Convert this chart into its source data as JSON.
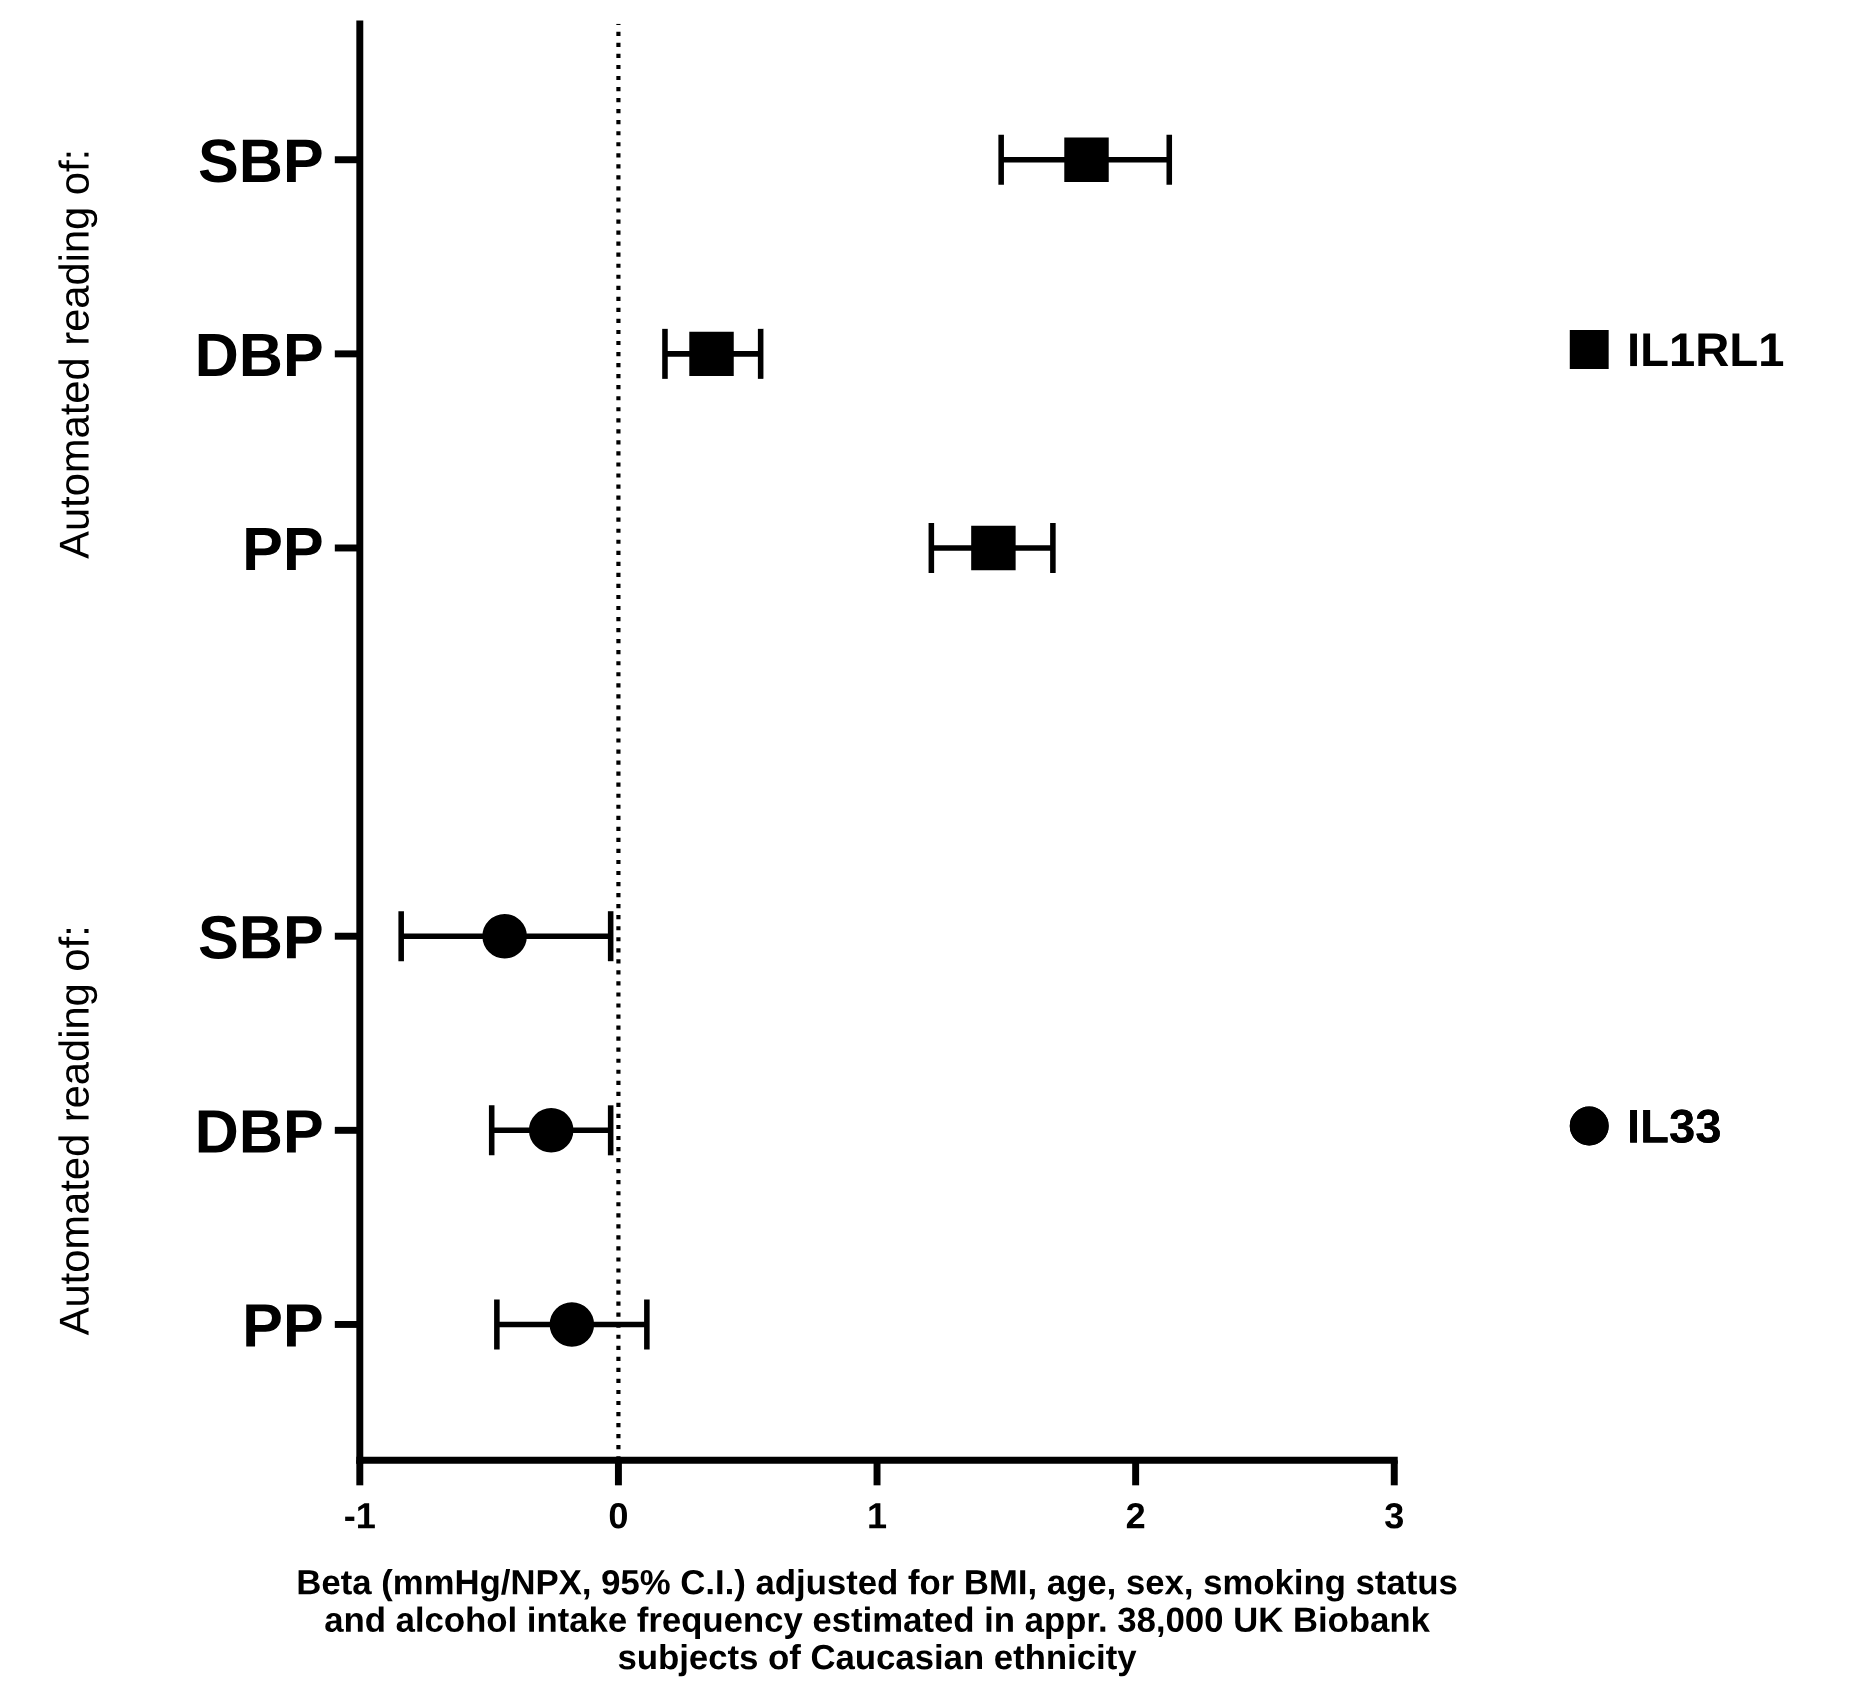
{
  "chart_data": {
    "type": "scatter",
    "orientation": "horizontal",
    "xlabel": "Beta (mmHg/NPX, 95% C.I.) adjusted for BMI, age, sex, smoking status\nand alcohol intake frequency estimated in appr. 38,000 UK Biobank\nsubjects of Caucasian ethnicity",
    "categories": [
      "SBP",
      "DBP",
      "PP",
      null,
      "SBP",
      "DBP",
      "PP"
    ],
    "series": [
      {
        "name": "IL1RL1",
        "color": "#000000",
        "marker": "square",
        "values": [
          1.81,
          0.36,
          1.45,
          null,
          null,
          null,
          null
        ],
        "errors": [
          [
            1.48,
            2.13
          ],
          [
            0.18,
            0.55
          ],
          [
            1.21,
            1.68
          ],
          null,
          null,
          null,
          null
        ]
      },
      {
        "name": "IL33",
        "color": "#000000",
        "marker": "circle",
        "values": [
          null,
          null,
          null,
          null,
          -0.44,
          -0.26,
          -0.18
        ],
        "errors": [
          null,
          null,
          null,
          null,
          [
            -0.84,
            -0.03
          ],
          [
            -0.49,
            -0.03
          ],
          [
            -0.47,
            0.11
          ]
        ]
      }
    ],
    "xlim": [
      -1,
      3
    ],
    "xticks": [
      -1,
      0,
      1,
      2,
      3
    ],
    "ref_lines": [
      {
        "axis": "x",
        "value": 0,
        "line_style": "dotted",
        "color": "#000000"
      }
    ],
    "annotations": [
      "Automated reading of:",
      "Automated reading of:"
    ],
    "legend": "right",
    "grid": false
  }
}
